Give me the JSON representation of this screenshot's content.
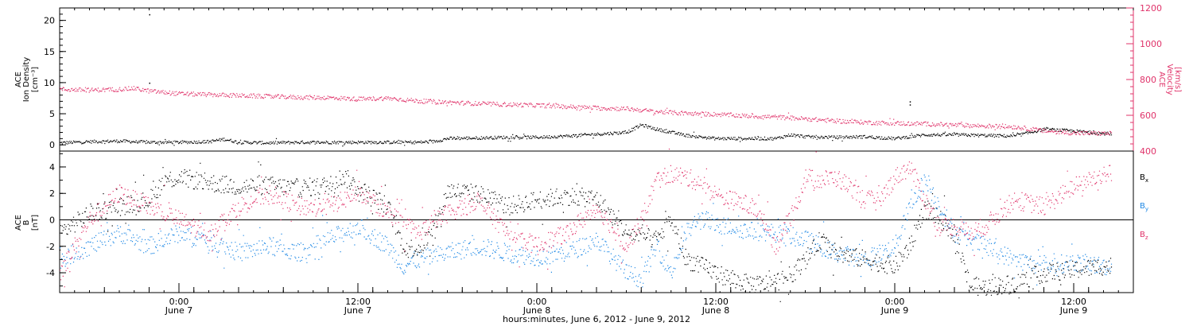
{
  "colors": {
    "black": "#000000",
    "pink": "#e0336a",
    "blue": "#1e88e5"
  },
  "chart_data": [
    {
      "type": "scatter",
      "panel": "top",
      "left_axis": {
        "label_lines": [
          "ACE",
          "Ion Density",
          "[cm⁻³]"
        ],
        "ylim": [
          -1,
          22
        ],
        "ticks": [
          0,
          5,
          10,
          15,
          20
        ]
      },
      "right_axis": {
        "label_lines": [
          "ACE",
          "Velocity",
          "[km/s]"
        ],
        "ylim": [
          400,
          1200
        ],
        "ticks": [
          400,
          600,
          800,
          1000,
          1200
        ]
      },
      "xlim_hours": [
        -8,
        64
      ],
      "series": [
        {
          "axis": "left",
          "color": "black",
          "points": [
            [
              -8,
              0.3
            ],
            [
              -6,
              0.5
            ],
            [
              -4,
              0.6
            ],
            [
              -2,
              0.4
            ],
            [
              0,
              0.4
            ],
            [
              2,
              0.5
            ],
            [
              3,
              0.9
            ],
            [
              4,
              0.4
            ],
            [
              6,
              0.3
            ],
            [
              8,
              0.4
            ],
            [
              10,
              0.4
            ],
            [
              12,
              0.4
            ],
            [
              14,
              0.4
            ],
            [
              16,
              0.4
            ],
            [
              17,
              0.5
            ],
            [
              18,
              1.0
            ],
            [
              20,
              1.1
            ],
            [
              22,
              1.2
            ],
            [
              24,
              1.2
            ],
            [
              26,
              1.4
            ],
            [
              28,
              1.7
            ],
            [
              30,
              2.0
            ],
            [
              31,
              3.2
            ],
            [
              32,
              2.5
            ],
            [
              34,
              1.5
            ],
            [
              36,
              1.0
            ],
            [
              38,
              1.0
            ],
            [
              40,
              1.0
            ],
            [
              41,
              1.6
            ],
            [
              42,
              1.3
            ],
            [
              44,
              1.2
            ],
            [
              46,
              1.3
            ],
            [
              48,
              1.0
            ],
            [
              50,
              1.6
            ],
            [
              52,
              1.6
            ],
            [
              54,
              1.5
            ],
            [
              56,
              1.4
            ],
            [
              58,
              2.5
            ],
            [
              60,
              2.2
            ],
            [
              62,
              1.8
            ]
          ]
        },
        {
          "axis": "right",
          "color": "pink",
          "points": [
            [
              -8,
              745
            ],
            [
              -6,
              740
            ],
            [
              -4,
              745
            ],
            [
              -3,
              750
            ],
            [
              -2,
              735
            ],
            [
              0,
              720
            ],
            [
              2,
              715
            ],
            [
              4,
              710
            ],
            [
              6,
              705
            ],
            [
              8,
              700
            ],
            [
              10,
              698
            ],
            [
              12,
              690
            ],
            [
              14,
              695
            ],
            [
              16,
              680
            ],
            [
              18,
              672
            ],
            [
              20,
              665
            ],
            [
              22,
              660
            ],
            [
              24,
              655
            ],
            [
              26,
              648
            ],
            [
              28,
              640
            ],
            [
              30,
              636
            ],
            [
              32,
              620
            ],
            [
              34,
              610
            ],
            [
              36,
              605
            ],
            [
              38,
              596
            ],
            [
              40,
              590
            ],
            [
              42,
              580
            ],
            [
              44,
              568
            ],
            [
              46,
              560
            ],
            [
              48,
              555
            ],
            [
              50,
              552
            ],
            [
              52,
              545
            ],
            [
              54,
              540
            ],
            [
              56,
              535
            ],
            [
              58,
              512
            ],
            [
              60,
              500
            ],
            [
              62,
              498
            ]
          ]
        }
      ],
      "outliers": [
        [
          -2,
          21
        ],
        [
          -2,
          10
        ],
        [
          49,
          7
        ],
        [
          49,
          6.5
        ]
      ]
    },
    {
      "type": "scatter",
      "panel": "bottom",
      "left_axis": {
        "label_lines": [
          "ACE",
          "B",
          "[nT]"
        ],
        "ylim": [
          -5.5,
          5.2
        ],
        "ticks": [
          -4,
          -2,
          0,
          2,
          4
        ]
      },
      "zero_line": true,
      "xlim_hours": [
        -8,
        64
      ],
      "x_ticks": [
        {
          "hour": 0,
          "time": "0:00",
          "date": "June 7"
        },
        {
          "hour": 12,
          "time": "12:00",
          "date": "June 7"
        },
        {
          "hour": 24,
          "time": "0:00",
          "date": "June 8"
        },
        {
          "hour": 36,
          "time": "12:00",
          "date": "June 8"
        },
        {
          "hour": 48,
          "time": "0:00",
          "date": "June 9"
        },
        {
          "hour": 60,
          "time": "12:00",
          "date": "June 9"
        }
      ],
      "xlabel": "hours:minutes, June  6, 2012 - June  9, 2012",
      "legend": [
        {
          "label": "B",
          "sub": "x",
          "color": "black"
        },
        {
          "label": "B",
          "sub": "y",
          "color": "blue"
        },
        {
          "label": "B",
          "sub": "z",
          "color": "pink"
        }
      ],
      "series": [
        {
          "name": "Bx",
          "color": "black",
          "points": [
            [
              -8,
              -1
            ],
            [
              -6,
              0.5
            ],
            [
              -4,
              1.0
            ],
            [
              -2,
              1.5
            ],
            [
              -1,
              3.0
            ],
            [
              0,
              3.2
            ],
            [
              2,
              2.8
            ],
            [
              4,
              2.5
            ],
            [
              6,
              2.6
            ],
            [
              8,
              2.4
            ],
            [
              10,
              2.6
            ],
            [
              11,
              3.3
            ],
            [
              12,
              2.4
            ],
            [
              14,
              1.0
            ],
            [
              15,
              -2.0
            ],
            [
              16,
              -2.2
            ],
            [
              17,
              -1.0
            ],
            [
              18,
              2.2
            ],
            [
              20,
              2.0
            ],
            [
              22,
              1.0
            ],
            [
              24,
              1.5
            ],
            [
              26,
              1.8
            ],
            [
              28,
              1.6
            ],
            [
              30,
              -1.0
            ],
            [
              32,
              -1.5
            ],
            [
              33,
              0.0
            ],
            [
              34,
              -3.0
            ],
            [
              35,
              -3.5
            ],
            [
              36,
              -4.0
            ],
            [
              37,
              -4.5
            ],
            [
              38,
              -4.8
            ],
            [
              39,
              -4.9
            ],
            [
              40,
              -4.7
            ],
            [
              41,
              -4.2
            ],
            [
              42,
              -3.0
            ],
            [
              43,
              -1.5
            ],
            [
              44,
              -2.5
            ],
            [
              46,
              -3.0
            ],
            [
              48,
              -3.5
            ],
            [
              49,
              -2.0
            ],
            [
              50,
              1.0
            ],
            [
              51,
              0.0
            ],
            [
              52,
              -1.0
            ],
            [
              53,
              -5.0
            ],
            [
              54,
              -5.1
            ],
            [
              56,
              -4.8
            ],
            [
              58,
              -4.0
            ],
            [
              60,
              -3.8
            ],
            [
              62,
              -3.5
            ]
          ]
        },
        {
          "name": "By",
          "color": "blue",
          "points": [
            [
              -8,
              -3
            ],
            [
              -6,
              -2
            ],
            [
              -4,
              -1
            ],
            [
              -2,
              -2
            ],
            [
              0,
              -1
            ],
            [
              2,
              -1.5
            ],
            [
              4,
              -2.5
            ],
            [
              6,
              -2.0
            ],
            [
              8,
              -2.5
            ],
            [
              10,
              -1.5
            ],
            [
              12,
              -0.5
            ],
            [
              14,
              -2.0
            ],
            [
              15,
              -3.5
            ],
            [
              16,
              -3.0
            ],
            [
              18,
              -2.5
            ],
            [
              20,
              -2.0
            ],
            [
              22,
              -2.5
            ],
            [
              24,
              -2.8
            ],
            [
              26,
              -2.5
            ],
            [
              28,
              -1.5
            ],
            [
              30,
              -4.0
            ],
            [
              31,
              -4.5
            ],
            [
              32,
              -2.0
            ],
            [
              33,
              -4.0
            ],
            [
              34,
              -1.0
            ],
            [
              35,
              0.2
            ],
            [
              36,
              -0.5
            ],
            [
              37,
              -0.5
            ],
            [
              38,
              -0.8
            ],
            [
              40,
              -1.0
            ],
            [
              42,
              -1.5
            ],
            [
              44,
              -2.5
            ],
            [
              46,
              -3.0
            ],
            [
              48,
              -2.0
            ],
            [
              49,
              1.0
            ],
            [
              50,
              3.0
            ],
            [
              51,
              1.0
            ],
            [
              52,
              -1.0
            ],
            [
              54,
              -2.0
            ],
            [
              56,
              -3.0
            ],
            [
              58,
              -3.5
            ],
            [
              60,
              -3.2
            ],
            [
              62,
              -3.5
            ]
          ]
        },
        {
          "name": "Bz",
          "color": "pink",
          "points": [
            [
              -8,
              -4
            ],
            [
              -6,
              0
            ],
            [
              -4,
              2
            ],
            [
              -2,
              1
            ],
            [
              0,
              0
            ],
            [
              2,
              -1
            ],
            [
              4,
              1
            ],
            [
              6,
              2
            ],
            [
              8,
              1
            ],
            [
              10,
              1
            ],
            [
              12,
              2
            ],
            [
              14,
              0.5
            ],
            [
              16,
              -1
            ],
            [
              18,
              0.5
            ],
            [
              20,
              1.5
            ],
            [
              22,
              -1
            ],
            [
              24,
              -2
            ],
            [
              26,
              -1
            ],
            [
              28,
              1
            ],
            [
              30,
              -2
            ],
            [
              31,
              0
            ],
            [
              32,
              3
            ],
            [
              33,
              3.5
            ],
            [
              34,
              3.2
            ],
            [
              35,
              2.8
            ],
            [
              36,
              1.8
            ],
            [
              37,
              1.5
            ],
            [
              38,
              1.2
            ],
            [
              39,
              0.5
            ],
            [
              40,
              -2
            ],
            [
              41,
              0
            ],
            [
              42,
              3.2
            ],
            [
              43,
              3.0
            ],
            [
              44,
              3.2
            ],
            [
              45,
              2.5
            ],
            [
              46,
              1.5
            ],
            [
              47,
              1.5
            ],
            [
              48,
              3.2
            ],
            [
              49,
              4.0
            ],
            [
              50,
              1.5
            ],
            [
              51,
              -0.5
            ],
            [
              52,
              -0.5
            ],
            [
              53,
              -1
            ],
            [
              54,
              -0.5
            ],
            [
              56,
              1.5
            ],
            [
              58,
              1.0
            ],
            [
              60,
              2.5
            ],
            [
              62,
              3.5
            ]
          ]
        }
      ]
    }
  ]
}
